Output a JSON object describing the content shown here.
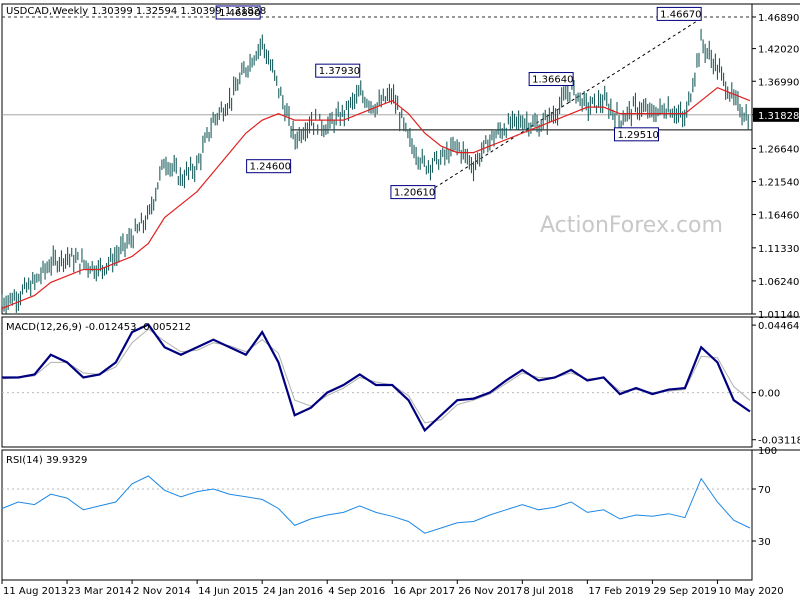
{
  "chart_data": [
    {
      "type": "candlestick",
      "title": "USDCAD,Weekly  1.30399 1.32594 1.30399 1.31828",
      "watermark": "ActionForex.com",
      "y_ticks": [
        1.4689,
        1.4202,
        1.3699,
        1.3182,
        1.2664,
        1.2154,
        1.1646,
        1.1133,
        1.0624,
        1.0114
      ],
      "y_tick_labels": [
        "1.46890",
        "1.42020",
        "1.36990",
        "1.31828",
        "1.26640",
        "1.21540",
        "1.16460",
        "1.11330",
        "1.06240",
        "1.01140"
      ],
      "ylim": [
        1.0114,
        1.4889
      ],
      "current_price_label": "1.31828",
      "annotations": [
        {
          "label": "1.46890",
          "date": "2016-01-17",
          "value": 1.4689
        },
        {
          "label": "1.24600",
          "date": "2016-05-01",
          "value": 1.246
        },
        {
          "label": "1.37930",
          "date": "2016-12-25",
          "value": 1.3793
        },
        {
          "label": "1.20610",
          "date": "2017-09-10",
          "value": 1.2061
        },
        {
          "label": "1.36640",
          "date": "2018-12-30",
          "value": 1.3664
        },
        {
          "label": "1.29510",
          "date": "2019-10-20",
          "value": 1.2951
        },
        {
          "label": "1.46670",
          "date": "2020-03-15",
          "value": 1.4667
        }
      ],
      "series": [
        {
          "name": "close",
          "x": [
            "2013-08-11",
            "2013-10-06",
            "2013-12-01",
            "2014-01-26",
            "2014-03-23",
            "2014-05-18",
            "2014-07-13",
            "2014-09-07",
            "2014-11-02",
            "2014-12-28",
            "2015-02-22",
            "2015-04-19",
            "2015-06-14",
            "2015-08-09",
            "2015-10-04",
            "2015-11-29",
            "2016-01-24",
            "2016-03-20",
            "2016-05-15",
            "2016-07-10",
            "2016-09-04",
            "2016-10-30",
            "2016-12-25",
            "2017-02-19",
            "2017-04-16",
            "2017-06-11",
            "2017-08-06",
            "2017-10-01",
            "2017-11-26",
            "2018-01-21",
            "2018-03-18",
            "2018-05-13",
            "2018-07-08",
            "2018-09-02",
            "2018-10-28",
            "2018-12-23",
            "2019-02-17",
            "2019-04-14",
            "2019-06-09",
            "2019-08-04",
            "2019-09-29",
            "2019-11-24",
            "2020-01-19",
            "2020-03-15",
            "2020-05-10",
            "2020-07-05",
            "2020-08-30"
          ],
          "values": [
            1.03,
            1.04,
            1.06,
            1.09,
            1.1,
            1.09,
            1.08,
            1.1,
            1.13,
            1.16,
            1.25,
            1.22,
            1.24,
            1.31,
            1.34,
            1.39,
            1.43,
            1.36,
            1.28,
            1.31,
            1.3,
            1.32,
            1.35,
            1.33,
            1.35,
            1.28,
            1.24,
            1.25,
            1.27,
            1.24,
            1.28,
            1.3,
            1.31,
            1.3,
            1.32,
            1.36,
            1.33,
            1.34,
            1.31,
            1.33,
            1.32,
            1.33,
            1.31,
            1.43,
            1.39,
            1.34,
            1.31
          ]
        },
        {
          "name": "SMA",
          "values": [
            1.02,
            1.03,
            1.04,
            1.06,
            1.07,
            1.08,
            1.08,
            1.09,
            1.1,
            1.12,
            1.16,
            1.18,
            1.2,
            1.23,
            1.26,
            1.29,
            1.31,
            1.32,
            1.31,
            1.31,
            1.31,
            1.31,
            1.32,
            1.33,
            1.34,
            1.32,
            1.29,
            1.27,
            1.26,
            1.26,
            1.27,
            1.28,
            1.29,
            1.3,
            1.31,
            1.32,
            1.33,
            1.33,
            1.32,
            1.32,
            1.32,
            1.32,
            1.32,
            1.34,
            1.36,
            1.35,
            1.34
          ]
        }
      ]
    },
    {
      "type": "line",
      "title": "MACD(12,26,9) -0.012453 -0.005212",
      "y_tick_labels": [
        "0.044642",
        "0.00",
        "-0.031183"
      ],
      "y_ticks": [
        0.044642,
        0.0,
        -0.031183
      ],
      "ylim": [
        -0.036,
        0.05
      ],
      "series": [
        {
          "name": "MACD",
          "values": [
            0.01,
            0.01,
            0.012,
            0.025,
            0.02,
            0.01,
            0.012,
            0.02,
            0.04,
            0.045,
            0.03,
            0.025,
            0.03,
            0.035,
            0.03,
            0.025,
            0.04,
            0.02,
            -0.015,
            -0.01,
            0.0,
            0.005,
            0.012,
            0.005,
            0.005,
            -0.005,
            -0.025,
            -0.015,
            -0.005,
            -0.004,
            0.0,
            0.008,
            0.015,
            0.008,
            0.01,
            0.015,
            0.008,
            0.01,
            -0.001,
            0.003,
            -0.001,
            0.002,
            0.003,
            0.03,
            0.02,
            -0.005,
            -0.0125
          ]
        },
        {
          "name": "signal",
          "values": [
            0.009,
            0.01,
            0.011,
            0.02,
            0.02,
            0.013,
            0.012,
            0.017,
            0.033,
            0.042,
            0.034,
            0.027,
            0.028,
            0.033,
            0.031,
            0.027,
            0.035,
            0.026,
            -0.005,
            -0.009,
            -0.002,
            0.003,
            0.01,
            0.007,
            0.005,
            -0.002,
            -0.02,
            -0.018,
            -0.008,
            -0.005,
            -0.001,
            0.006,
            0.013,
            0.01,
            0.01,
            0.013,
            0.009,
            0.01,
            0.001,
            0.002,
            0.0,
            0.001,
            0.002,
            0.024,
            0.023,
            0.004,
            -0.0052
          ]
        }
      ]
    },
    {
      "type": "line",
      "title": "RSI(14) 39.9329",
      "y_tick_labels": [
        "100",
        "70",
        "30"
      ],
      "y_ticks": [
        100,
        70,
        30
      ],
      "ylim": [
        0,
        100
      ],
      "series": [
        {
          "name": "RSI",
          "values": [
            55,
            60,
            58,
            66,
            63,
            54,
            57,
            60,
            74,
            80,
            69,
            64,
            68,
            70,
            66,
            64,
            62,
            55,
            42,
            47,
            50,
            52,
            57,
            52,
            49,
            45,
            36,
            40,
            44,
            45,
            50,
            54,
            58,
            54,
            56,
            60,
            52,
            54,
            47,
            50,
            49,
            51,
            48,
            78,
            60,
            46,
            40
          ]
        }
      ]
    }
  ],
  "x_axis": {
    "tick_labels": [
      "11 Aug 2013",
      "23 Mar 2014",
      "2 Nov 2014",
      "14 Jun 2015",
      "24 Jan 2016",
      "4 Sep 2016",
      "16 Apr 2017",
      "26 Nov 2017",
      "8 Jul 2018",
      "17 Feb 2019",
      "29 Sep 2019",
      "10 May 2020"
    ]
  },
  "colors": {
    "candle": "#1b5d5d",
    "sma": "#e02020",
    "macd": "#000080",
    "signal": "#b0b0b0",
    "rsi": "#1e88e5",
    "label_border": "#000080"
  }
}
